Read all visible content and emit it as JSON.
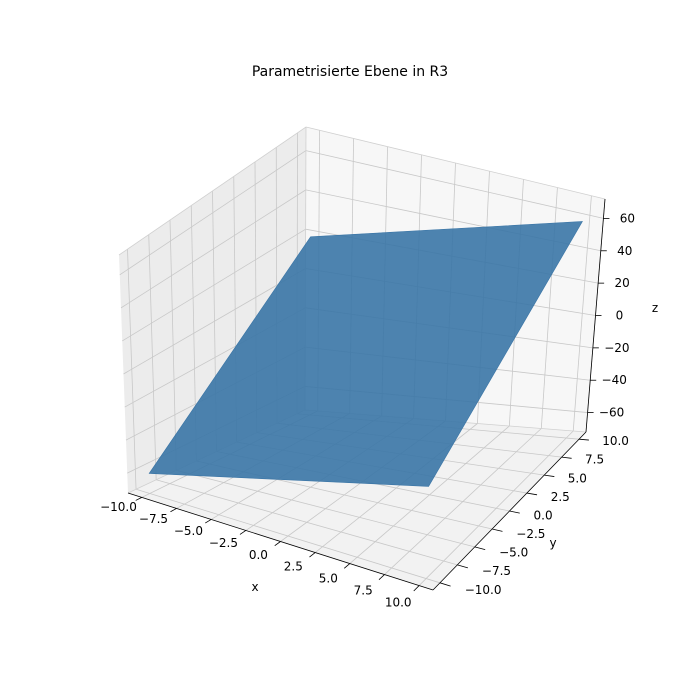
{
  "chart_data": {
    "type": "surface3d",
    "title": "Parametrisierte Ebene in R3",
    "xlabel": "x",
    "ylabel": "y",
    "zlabel": "z",
    "x_ticks": [
      -10.0,
      -7.5,
      -5.0,
      -2.5,
      0.0,
      2.5,
      5.0,
      7.5,
      10.0
    ],
    "y_ticks": [
      -10.0,
      -7.5,
      -5.0,
      -2.5,
      0.0,
      2.5,
      5.0,
      7.5,
      10.0
    ],
    "z_ticks": [
      -60,
      -40,
      -20,
      0,
      20,
      40,
      60
    ],
    "x_tick_labels": [
      "−10.0",
      "−7.5",
      "−5.0",
      "−2.5",
      "0.0",
      "2.5",
      "5.0",
      "7.5",
      "10.0"
    ],
    "y_tick_labels": [
      "−10.0",
      "−7.5",
      "−5.0",
      "−2.5",
      "0.0",
      "2.5",
      "5.0",
      "7.5",
      "10.0"
    ],
    "z_tick_labels": [
      "−60",
      "−40",
      "−20",
      "0",
      "20",
      "40",
      "60"
    ],
    "xlim": [
      -11,
      11
    ],
    "ylim": [
      -11,
      11
    ],
    "zlim": [
      -72,
      72
    ],
    "surface": {
      "corners": [
        {
          "x": -10,
          "y": -10,
          "z": -60
        },
        {
          "x": 10,
          "y": -10,
          "z": -20
        },
        {
          "x": 10,
          "y": 10,
          "z": 60
        },
        {
          "x": -10,
          "y": 10,
          "z": 20
        }
      ],
      "color": "#3a75a6"
    },
    "grid": true,
    "pane_colors": [
      "#f2f2f2",
      "#ececec",
      "#f7f7f7"
    ],
    "grid_color": "#c8c8c8"
  }
}
